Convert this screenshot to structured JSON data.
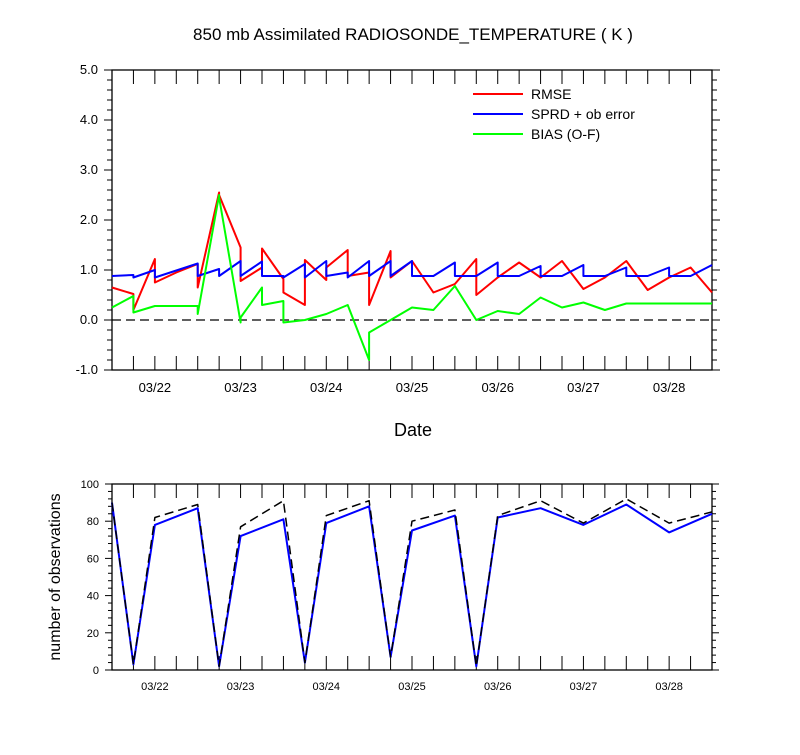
{
  "chart_data": [
    {
      "type": "line",
      "title": "850 mb Assimilated RADIOSONDE_TEMPERATURE ( K )",
      "xlabel": "Date",
      "ylabel": "",
      "xlim": [
        0,
        7.0
      ],
      "ylim": [
        -1.0,
        5.0
      ],
      "yticks": [
        "-1.0",
        "0.0",
        "1.0",
        "2.0",
        "3.0",
        "4.0",
        "5.0"
      ],
      "categories": [
        "03/22",
        "03/23",
        "03/24",
        "03/25",
        "03/26",
        "03/27",
        "03/28"
      ],
      "category_positions": [
        0.5,
        1.5,
        2.5,
        3.5,
        4.5,
        5.5,
        6.5
      ],
      "legend_position": "top-right",
      "zero_line": {
        "y": 0.0,
        "style": "dashed",
        "color": "#000000"
      },
      "series": [
        {
          "name": "RMSE",
          "color": "#ff0000",
          "x": [
            0.0,
            0.25,
            0.25,
            0.5,
            0.5,
            0.75,
            1.0,
            1.0,
            1.25,
            1.25,
            1.5,
            1.5,
            1.75,
            1.75,
            2.0,
            2.0,
            2.25,
            2.25,
            2.5,
            2.5,
            2.75,
            2.75,
            3.0,
            3.0,
            3.25,
            3.25,
            3.5,
            3.5,
            3.75,
            3.75,
            4.0,
            4.0,
            4.25,
            4.25,
            4.5,
            4.5,
            4.75,
            4.75,
            5.0,
            5.0,
            5.25,
            5.25,
            5.5,
            5.5,
            5.75,
            5.75,
            6.0,
            6.0,
            6.25,
            6.25,
            6.5,
            6.5,
            6.75,
            6.75,
            7.0
          ],
          "y": [
            0.65,
            0.52,
            0.2,
            1.22,
            0.75,
            0.95,
            1.12,
            0.65,
            2.55,
            2.5,
            1.45,
            0.78,
            1.05,
            1.43,
            0.82,
            0.55,
            0.3,
            1.2,
            0.8,
            1.05,
            1.4,
            0.88,
            0.95,
            0.3,
            1.38,
            0.85,
            1.18,
            1.18,
            0.55,
            0.55,
            0.72,
            0.72,
            1.22,
            0.5,
            0.85,
            0.85,
            1.15,
            1.15,
            0.85,
            0.85,
            1.18,
            1.18,
            0.62,
            0.62,
            0.85,
            0.85,
            1.18,
            1.18,
            0.6,
            0.6,
            0.85,
            0.85,
            1.05,
            1.05,
            0.55
          ]
        },
        {
          "name": "SPRD + ob error",
          "color": "#0000ff",
          "x": [
            0.0,
            0.25,
            0.25,
            0.5,
            0.5,
            1.0,
            1.0,
            1.25,
            1.25,
            1.5,
            1.5,
            1.75,
            1.75,
            2.0,
            2.0,
            2.25,
            2.25,
            2.5,
            2.5,
            2.75,
            2.75,
            3.0,
            3.0,
            3.25,
            3.25,
            3.5,
            3.5,
            3.75,
            3.75,
            4.0,
            4.0,
            4.25,
            4.25,
            4.5,
            4.5,
            4.75,
            4.75,
            5.0,
            5.0,
            5.25,
            5.25,
            5.5,
            5.5,
            5.75,
            5.75,
            6.0,
            6.0,
            6.25,
            6.25,
            6.5,
            6.5,
            6.75,
            6.75,
            7.0
          ],
          "y": [
            0.88,
            0.9,
            0.85,
            1.0,
            0.85,
            1.13,
            0.88,
            1.02,
            0.88,
            1.18,
            0.88,
            1.17,
            0.88,
            0.88,
            0.85,
            1.12,
            0.85,
            1.18,
            0.88,
            0.95,
            0.85,
            1.18,
            0.88,
            1.18,
            0.88,
            1.18,
            0.88,
            0.88,
            0.88,
            1.15,
            0.88,
            0.88,
            0.88,
            1.15,
            0.88,
            0.88,
            0.88,
            1.08,
            0.88,
            0.88,
            0.88,
            1.1,
            0.88,
            0.88,
            0.88,
            1.05,
            0.88,
            0.88,
            0.88,
            1.05,
            0.88,
            0.88,
            0.88,
            1.1
          ]
        },
        {
          "name": "BIAS (O-F)",
          "color": "#00ff00",
          "x": [
            0.0,
            0.25,
            0.25,
            0.5,
            0.5,
            1.0,
            1.0,
            1.25,
            1.25,
            1.5,
            1.5,
            1.75,
            1.75,
            2.0,
            2.0,
            2.25,
            2.25,
            2.5,
            2.5,
            2.75,
            2.75,
            3.0,
            3.0,
            3.25,
            3.25,
            3.5,
            3.5,
            3.75,
            3.75,
            4.0,
            4.0,
            4.25,
            4.25,
            4.5,
            4.5,
            4.75,
            4.75,
            5.0,
            5.0,
            5.25,
            5.25,
            5.5,
            5.5,
            5.75,
            5.75,
            6.0,
            6.0,
            6.25,
            6.25,
            6.5,
            6.5,
            6.75,
            6.75,
            7.0
          ],
          "y": [
            0.25,
            0.48,
            0.15,
            0.28,
            0.28,
            0.28,
            0.12,
            2.5,
            2.45,
            -0.05,
            0.05,
            0.65,
            0.3,
            0.38,
            -0.05,
            0.0,
            0.0,
            0.12,
            0.12,
            0.3,
            0.3,
            -0.8,
            -0.25,
            0.0,
            0.0,
            0.25,
            0.25,
            0.2,
            0.2,
            0.68,
            0.68,
            0.0,
            0.0,
            0.18,
            0.18,
            0.12,
            0.12,
            0.45,
            0.45,
            0.25,
            0.25,
            0.35,
            0.35,
            0.2,
            0.2,
            0.33,
            0.33,
            0.33,
            0.33,
            0.33,
            0.33,
            0.33,
            0.33,
            0.33
          ]
        }
      ]
    },
    {
      "type": "line",
      "title": "",
      "xlabel": "",
      "ylabel": "number of observations",
      "xlim": [
        0,
        7.0
      ],
      "ylim": [
        0,
        100
      ],
      "yticks": [
        "0",
        "20",
        "40",
        "60",
        "80",
        "100"
      ],
      "categories": [
        "03/22",
        "03/23",
        "03/24",
        "03/25",
        "03/26",
        "03/27",
        "03/28"
      ],
      "category_positions": [
        0.5,
        1.5,
        2.5,
        3.5,
        4.5,
        5.5,
        6.5
      ],
      "series": [
        {
          "color": "#0000ff",
          "x": [
            0.0,
            0.25,
            0.5,
            1.0,
            1.25,
            1.5,
            2.0,
            2.25,
            2.5,
            3.0,
            3.25,
            3.5,
            4.0,
            4.25,
            4.5,
            5.0,
            5.5,
            6.0,
            6.5,
            7.0
          ],
          "y": [
            90,
            3,
            78,
            87,
            2,
            72,
            81,
            4,
            79,
            88,
            7,
            75,
            83,
            2,
            82,
            87,
            78,
            89,
            74,
            84
          ]
        },
        {
          "color": "#000000",
          "style": "dashed",
          "x": [
            0.0,
            0.25,
            0.5,
            1.0,
            1.25,
            1.5,
            2.0,
            2.25,
            2.5,
            3.0,
            3.25,
            3.5,
            4.0,
            4.25,
            4.5,
            5.0,
            5.5,
            6.0,
            6.5,
            7.0
          ],
          "y": [
            90,
            3,
            82,
            89,
            2,
            77,
            91,
            4,
            83,
            91,
            7,
            80,
            86,
            2,
            83,
            91,
            79,
            92,
            79,
            85
          ]
        }
      ]
    }
  ]
}
